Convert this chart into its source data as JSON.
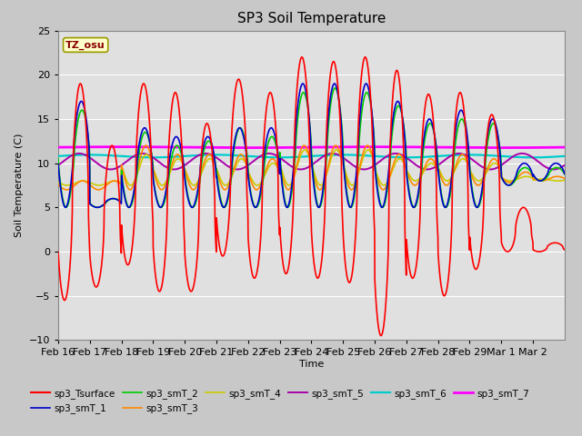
{
  "title": "SP3 Soil Temperature",
  "ylabel": "Soil Temperature (C)",
  "xlabel": "Time",
  "annotation": "TZ_osu",
  "ylim": [
    -10,
    25
  ],
  "n_days": 16,
  "x_tick_labels": [
    "Feb 16",
    "Feb 17",
    "Feb 18",
    "Feb 19",
    "Feb 20",
    "Feb 21",
    "Feb 22",
    "Feb 23",
    "Feb 24",
    "Feb 25",
    "Feb 26",
    "Feb 27",
    "Feb 28",
    "Feb 29",
    "Mar 1",
    "Mar 2"
  ],
  "series_colors": {
    "sp3_Tsurface": "#ff0000",
    "sp3_smT_1": "#0000cc",
    "sp3_smT_2": "#00cc00",
    "sp3_smT_3": "#ff8800",
    "sp3_smT_4": "#cccc00",
    "sp3_smT_5": "#aa00aa",
    "sp3_smT_6": "#00cccc",
    "sp3_smT_7": "#ff00ff"
  },
  "bg_color": "#c8c8c8",
  "plot_bg_color": "#e0e0e0",
  "yticks": [
    -10,
    -5,
    0,
    5,
    10,
    15,
    20,
    25
  ]
}
